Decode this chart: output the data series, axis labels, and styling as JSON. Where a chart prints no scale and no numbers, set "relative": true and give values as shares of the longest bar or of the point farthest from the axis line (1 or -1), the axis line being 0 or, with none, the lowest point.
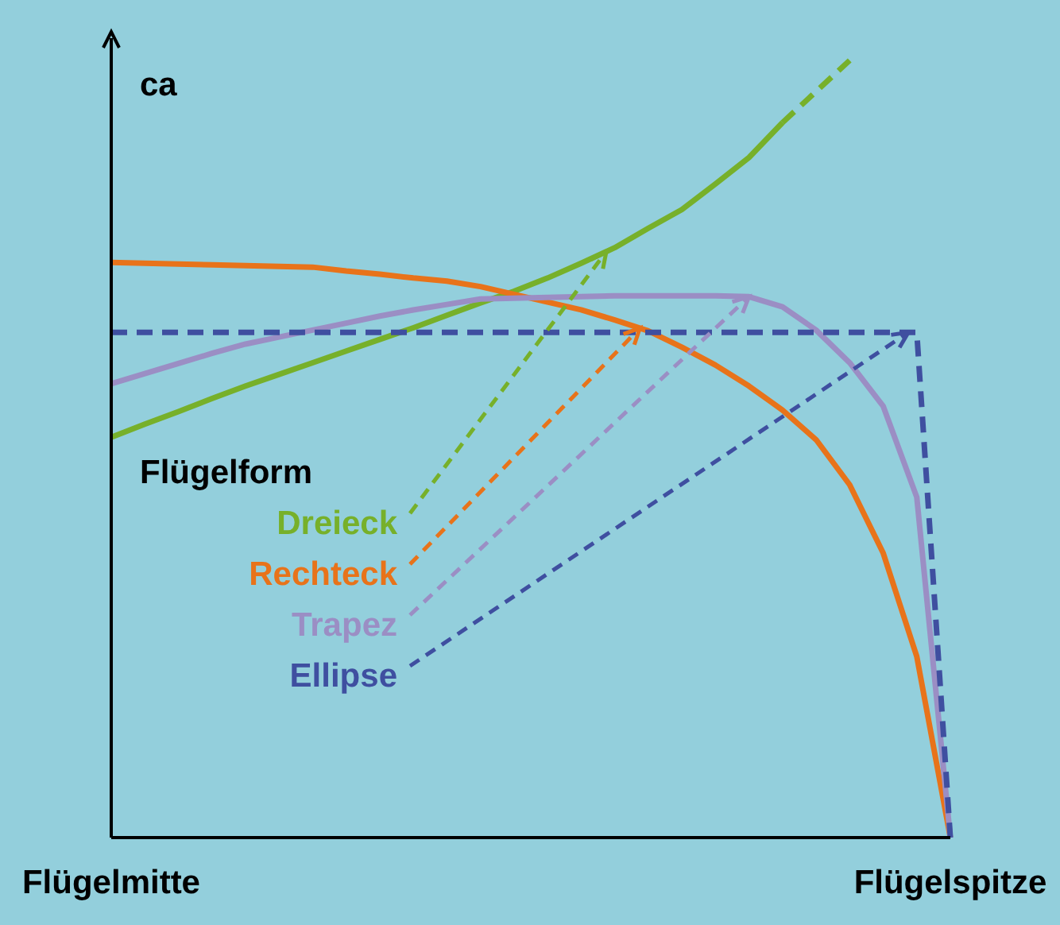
{
  "chart_data": {
    "type": "line",
    "relative": true,
    "ylabel": "ca",
    "legend_title": "Flügelform",
    "categories": [
      "Flügelmitte",
      null,
      null,
      null,
      null,
      null,
      null,
      null,
      null,
      null,
      null,
      null,
      null,
      null,
      null,
      null,
      null,
      null,
      null,
      null,
      null,
      null,
      null,
      null,
      null,
      "Flügelspitze"
    ],
    "series": [
      {
        "name": "Dreieck",
        "color": "#77b02a",
        "line_style": "solid",
        "values": [
          0.515,
          0.532,
          0.548,
          0.565,
          0.581,
          0.596,
          0.611,
          0.626,
          0.641,
          0.656,
          0.672,
          0.688,
          0.703,
          0.72,
          0.739,
          0.759,
          0.784,
          0.808,
          0.841,
          0.875,
          0.92,
          null,
          null,
          null,
          null,
          null
        ]
      },
      {
        "name": "Rechteck",
        "color": "#e8731a",
        "line_style": "solid",
        "values": [
          0.74,
          0.739,
          0.738,
          0.737,
          0.736,
          0.735,
          0.734,
          0.729,
          0.725,
          0.72,
          0.716,
          0.709,
          0.699,
          0.689,
          0.679,
          0.666,
          0.652,
          0.631,
          0.608,
          0.581,
          0.55,
          0.512,
          0.454,
          0.366,
          0.233,
          0
        ]
      },
      {
        "name": "Trapez",
        "color": "#9b8ec4",
        "line_style": "solid",
        "values": [
          0.584,
          0.597,
          0.61,
          0.623,
          0.635,
          0.644,
          0.653,
          0.662,
          0.671,
          0.679,
          0.686,
          0.693,
          0.694,
          0.695,
          0.696,
          0.697,
          0.697,
          0.697,
          0.697,
          0.696,
          0.683,
          0.653,
          0.611,
          0.555,
          0.438,
          0
        ]
      },
      {
        "name": "Ellipse",
        "color": "#3f4fa0",
        "line_style": "dashed",
        "values": [
          0.65,
          0.65,
          0.65,
          0.65,
          0.65,
          0.65,
          0.65,
          0.65,
          0.65,
          0.65,
          0.65,
          0.65,
          0.65,
          0.65,
          0.65,
          0.65,
          0.65,
          0.65,
          0.65,
          0.65,
          0.65,
          0.65,
          0.65,
          0.65,
          0.65,
          0
        ]
      },
      {
        "color": "#77b02a",
        "line_style": "dashed",
        "values": [
          null,
          null,
          null,
          null,
          null,
          null,
          null,
          null,
          null,
          null,
          null,
          null,
          null,
          null,
          null,
          null,
          null,
          null,
          null,
          null,
          0.92,
          0.96,
          1,
          null,
          null,
          null
        ]
      }
    ]
  }
}
